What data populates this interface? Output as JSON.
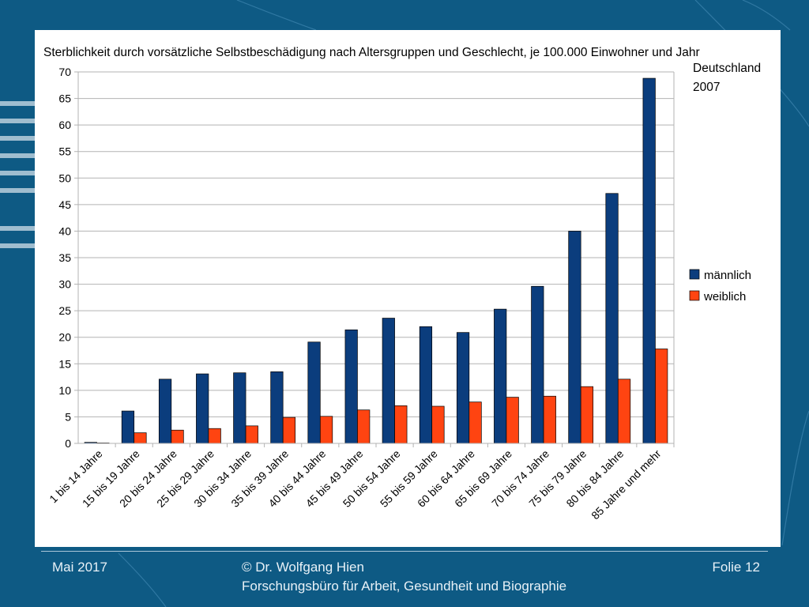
{
  "chart_data": {
    "type": "bar",
    "title": "Sterblichkeit durch vorsätzliche Selbstbeschädigung nach Altersgruppen und Geschlecht, je 100.000 Einwohner und Jahr",
    "subtitle": [
      "Deutschland",
      "2007"
    ],
    "categories": [
      "1 bis 14 Jahre",
      "15 bis 19 Jahre",
      "20 bis 24 Jahre",
      "25 bis 29 Jahre",
      "30 bis 34 Jahre",
      "35 bis 39 Jahre",
      "40 bis 44 Jahre",
      "45 bis 49 Jahre",
      "50 bis 54 Jahre",
      "55 bis 59 Jahre",
      "60 bis 64 Jahre",
      "65 bis 69 Jahre",
      "70 bis 74 Jahre",
      "75 bis 79 Jahre",
      "80 bis 84 Jahre",
      "85 Jahre und mehr"
    ],
    "series": [
      {
        "name": "männlich",
        "color": "#0b3d7d",
        "values": [
          0.2,
          6.1,
          12.1,
          13.1,
          13.3,
          13.5,
          19.1,
          21.4,
          23.6,
          22.0,
          20.9,
          25.3,
          29.6,
          40.0,
          47.1,
          68.8
        ]
      },
      {
        "name": "weiblich",
        "color": "#ff4411",
        "values": [
          0.0,
          2.0,
          2.5,
          2.8,
          3.3,
          4.9,
          5.1,
          6.3,
          7.1,
          7.0,
          7.8,
          8.7,
          8.9,
          10.7,
          12.1,
          17.8
        ]
      }
    ],
    "ylim": [
      0,
      70
    ],
    "yticks": [
      0,
      5,
      10,
      15,
      20,
      25,
      30,
      35,
      40,
      45,
      50,
      55,
      60,
      65,
      70
    ],
    "xlabel": "",
    "ylabel": "",
    "grid": true,
    "legend": "right"
  },
  "footer": {
    "date": "Mai 2017",
    "author": "© Dr. Wolfgang Hien",
    "organization": "Forschungsbüro für Arbeit, Gesundheit und Biographie",
    "slide": "Folie 12"
  }
}
